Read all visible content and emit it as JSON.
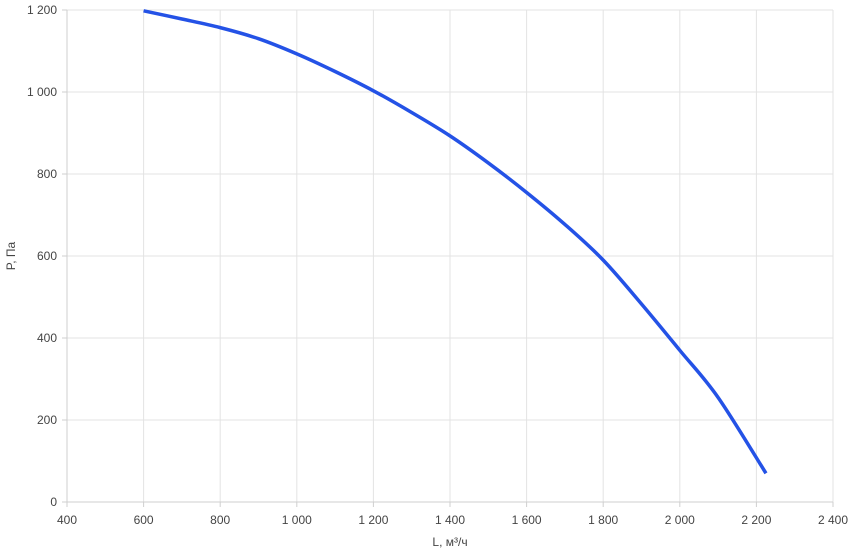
{
  "chart_data": {
    "type": "line",
    "title": "",
    "xlabel": "L, м³/ч",
    "ylabel": "P, Па",
    "xlim": [
      400,
      2400
    ],
    "ylim": [
      0,
      1200
    ],
    "x_ticks": [
      400,
      600,
      800,
      1000,
      1200,
      1400,
      1600,
      1800,
      2000,
      2200,
      2400
    ],
    "x_tick_labels": [
      "400",
      "600",
      "800",
      "1 000",
      "1 200",
      "1 400",
      "1 600",
      "1 800",
      "2 000",
      "2 200",
      "2 400"
    ],
    "y_ticks": [
      0,
      200,
      400,
      600,
      800,
      1000,
      1200
    ],
    "y_tick_labels": [
      "0",
      "200",
      "400",
      "600",
      "800",
      "1 000",
      "1 200"
    ],
    "grid": true,
    "legend": "none",
    "series": [
      {
        "color": "#2452e6",
        "x": [
          600,
          700,
          800,
          900,
          1000,
          1100,
          1200,
          1300,
          1400,
          1500,
          1600,
          1700,
          1800,
          1900,
          2000,
          2100,
          2225
        ],
        "y": [
          1198,
          1178,
          1157,
          1130,
          1093,
          1050,
          1003,
          950,
          893,
          827,
          755,
          677,
          590,
          483,
          370,
          255,
          70
        ]
      }
    ]
  }
}
